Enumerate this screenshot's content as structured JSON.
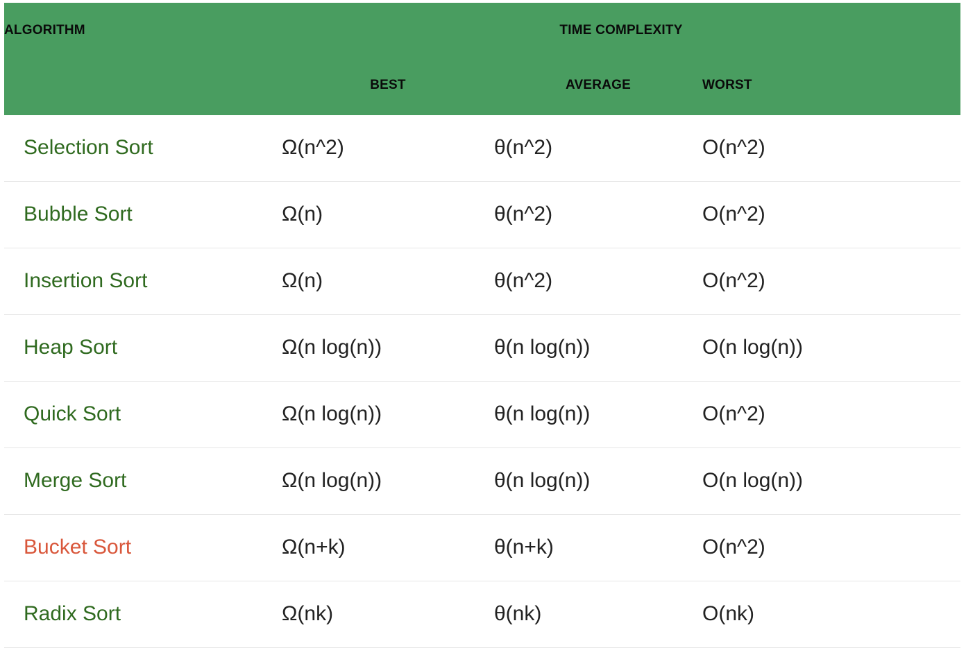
{
  "header": {
    "algorithm": "ALGORITHM",
    "time_complexity": "TIME COMPLEXITY",
    "best": "BEST",
    "average": "AVERAGE",
    "worst": "WORST"
  },
  "colors": {
    "header_bg": "#499d60",
    "algo_text": "#2f6a1f",
    "highlight_text": "#d9573b"
  },
  "rows": [
    {
      "name": "Selection Sort",
      "best": "Ω(n^2)",
      "average": "θ(n^2)",
      "worst": "O(n^2)"
    },
    {
      "name": "Bubble Sort",
      "best": "Ω(n)",
      "average": "θ(n^2)",
      "worst": "O(n^2)"
    },
    {
      "name": "Insertion Sort",
      "best": "Ω(n)",
      "average": "θ(n^2)",
      "worst": "O(n^2)"
    },
    {
      "name": "Heap Sort",
      "best": "Ω(n log(n))",
      "average": "θ(n log(n))",
      "worst": "O(n log(n))"
    },
    {
      "name": "Quick Sort",
      "best": "Ω(n log(n))",
      "average": "θ(n log(n))",
      "worst": "O(n^2)"
    },
    {
      "name": "Merge Sort",
      "best": "Ω(n log(n))",
      "average": "θ(n log(n))",
      "worst": "O(n log(n))"
    },
    {
      "name": "Bucket Sort",
      "best": "Ω(n+k)",
      "average": "θ(n+k)",
      "worst": "O(n^2)"
    },
    {
      "name": "Radix Sort",
      "best": "Ω(nk)",
      "average": "θ(nk)",
      "worst": "O(nk)"
    }
  ]
}
